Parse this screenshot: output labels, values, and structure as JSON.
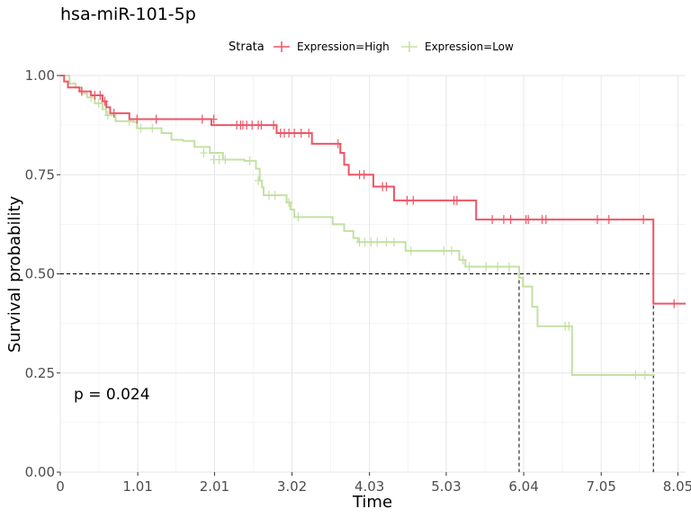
{
  "chart_data": {
    "type": "line",
    "subtype": "kaplan-meier",
    "title": "hsa-miR-101-5p",
    "xlabel": "Time",
    "ylabel": "Survival probability",
    "xlim": [
      0,
      8.15
    ],
    "ylim": [
      0,
      1
    ],
    "x_ticks": [
      0,
      1.01,
      2.01,
      3.02,
      4.03,
      5.03,
      6.04,
      7.05,
      8.05
    ],
    "x_tick_labels": [
      "0",
      "1.01",
      "2.01",
      "3.02",
      "4.03",
      "5.03",
      "6.04",
      "7.05",
      "8.05"
    ],
    "y_ticks": [
      0,
      0.25,
      0.5,
      0.75,
      1.0
    ],
    "y_tick_labels": [
      "0.00",
      "0.25",
      "0.50",
      "0.75",
      "1.00"
    ],
    "grid": true,
    "legend": {
      "title": "Strata",
      "position": "top"
    },
    "annotation": "p = 0.024",
    "median_line": {
      "y": 0.5,
      "x_values": [
        5.98,
        7.73
      ]
    },
    "series": [
      {
        "name": "Expression=High",
        "color": "#ee5566",
        "steps": [
          [
            0,
            1.0
          ],
          [
            0.05,
            0.985
          ],
          [
            0.1,
            0.97
          ],
          [
            0.25,
            0.96
          ],
          [
            0.4,
            0.95
          ],
          [
            0.55,
            0.935
          ],
          [
            0.6,
            0.92
          ],
          [
            0.65,
            0.905
          ],
          [
            0.9,
            0.89
          ],
          [
            1.97,
            0.875
          ],
          [
            2.82,
            0.855
          ],
          [
            3.28,
            0.828
          ],
          [
            3.65,
            0.805
          ],
          [
            3.7,
            0.775
          ],
          [
            3.76,
            0.75
          ],
          [
            4.08,
            0.72
          ],
          [
            4.35,
            0.685
          ],
          [
            5.42,
            0.637
          ],
          [
            7.73,
            0.425
          ],
          [
            8.15,
            0.425
          ]
        ],
        "censor": [
          [
            0.28,
            0.96
          ],
          [
            0.45,
            0.95
          ],
          [
            0.52,
            0.95
          ],
          [
            0.58,
            0.935
          ],
          [
            0.7,
            0.905
          ],
          [
            1.0,
            0.89
          ],
          [
            1.25,
            0.89
          ],
          [
            1.85,
            0.89
          ],
          [
            2.0,
            0.89
          ],
          [
            2.3,
            0.875
          ],
          [
            2.35,
            0.875
          ],
          [
            2.38,
            0.875
          ],
          [
            2.43,
            0.875
          ],
          [
            2.5,
            0.875
          ],
          [
            2.58,
            0.875
          ],
          [
            2.62,
            0.875
          ],
          [
            2.78,
            0.875
          ],
          [
            2.87,
            0.855
          ],
          [
            2.92,
            0.855
          ],
          [
            2.98,
            0.855
          ],
          [
            3.05,
            0.855
          ],
          [
            3.14,
            0.855
          ],
          [
            3.24,
            0.855
          ],
          [
            3.62,
            0.828
          ],
          [
            3.9,
            0.75
          ],
          [
            3.96,
            0.75
          ],
          [
            4.2,
            0.72
          ],
          [
            4.25,
            0.72
          ],
          [
            4.52,
            0.685
          ],
          [
            4.6,
            0.685
          ],
          [
            5.13,
            0.685
          ],
          [
            5.17,
            0.685
          ],
          [
            5.63,
            0.637
          ],
          [
            5.78,
            0.637
          ],
          [
            5.87,
            0.637
          ],
          [
            6.07,
            0.637
          ],
          [
            6.1,
            0.637
          ],
          [
            6.28,
            0.637
          ],
          [
            6.33,
            0.637
          ],
          [
            7.0,
            0.637
          ],
          [
            7.15,
            0.637
          ],
          [
            7.6,
            0.637
          ],
          [
            8.0,
            0.425
          ]
        ]
      },
      {
        "name": "Expression=Low",
        "color": "#c3e0a4",
        "steps": [
          [
            0,
            1.0
          ],
          [
            0.12,
            0.98
          ],
          [
            0.2,
            0.97
          ],
          [
            0.28,
            0.955
          ],
          [
            0.35,
            0.945
          ],
          [
            0.45,
            0.93
          ],
          [
            0.55,
            0.915
          ],
          [
            0.6,
            0.9
          ],
          [
            0.72,
            0.885
          ],
          [
            0.95,
            0.883
          ],
          [
            1.0,
            0.867
          ],
          [
            1.32,
            0.855
          ],
          [
            1.45,
            0.838
          ],
          [
            1.6,
            0.835
          ],
          [
            1.75,
            0.82
          ],
          [
            1.95,
            0.805
          ],
          [
            2.12,
            0.788
          ],
          [
            2.4,
            0.785
          ],
          [
            2.55,
            0.765
          ],
          [
            2.6,
            0.735
          ],
          [
            2.63,
            0.718
          ],
          [
            2.65,
            0.698
          ],
          [
            2.95,
            0.68
          ],
          [
            3.0,
            0.662
          ],
          [
            3.05,
            0.643
          ],
          [
            3.55,
            0.625
          ],
          [
            3.7,
            0.608
          ],
          [
            3.82,
            0.59
          ],
          [
            3.88,
            0.58
          ],
          [
            4.5,
            0.558
          ],
          [
            5.2,
            0.535
          ],
          [
            5.28,
            0.518
          ],
          [
            5.98,
            0.49
          ],
          [
            6.03,
            0.468
          ],
          [
            6.15,
            0.417
          ],
          [
            6.22,
            0.368
          ],
          [
            6.67,
            0.245
          ],
          [
            7.75,
            0.245
          ]
        ],
        "censor": [
          [
            0.4,
            0.945
          ],
          [
            0.5,
            0.93
          ],
          [
            0.62,
            0.9
          ],
          [
            0.9,
            0.885
          ],
          [
            1.05,
            0.867
          ],
          [
            1.2,
            0.867
          ],
          [
            1.87,
            0.805
          ],
          [
            2.0,
            0.788
          ],
          [
            2.07,
            0.788
          ],
          [
            2.15,
            0.788
          ],
          [
            2.47,
            0.785
          ],
          [
            2.58,
            0.735
          ],
          [
            2.72,
            0.698
          ],
          [
            2.8,
            0.698
          ],
          [
            2.98,
            0.68
          ],
          [
            3.1,
            0.643
          ],
          [
            3.9,
            0.58
          ],
          [
            3.97,
            0.58
          ],
          [
            4.05,
            0.58
          ],
          [
            4.13,
            0.58
          ],
          [
            4.25,
            0.58
          ],
          [
            4.35,
            0.58
          ],
          [
            4.57,
            0.558
          ],
          [
            5.0,
            0.558
          ],
          [
            5.1,
            0.558
          ],
          [
            5.25,
            0.535
          ],
          [
            5.33,
            0.518
          ],
          [
            5.55,
            0.518
          ],
          [
            5.7,
            0.518
          ],
          [
            5.85,
            0.518
          ],
          [
            6.58,
            0.368
          ],
          [
            6.63,
            0.368
          ],
          [
            7.5,
            0.245
          ],
          [
            7.62,
            0.245
          ]
        ]
      }
    ]
  }
}
